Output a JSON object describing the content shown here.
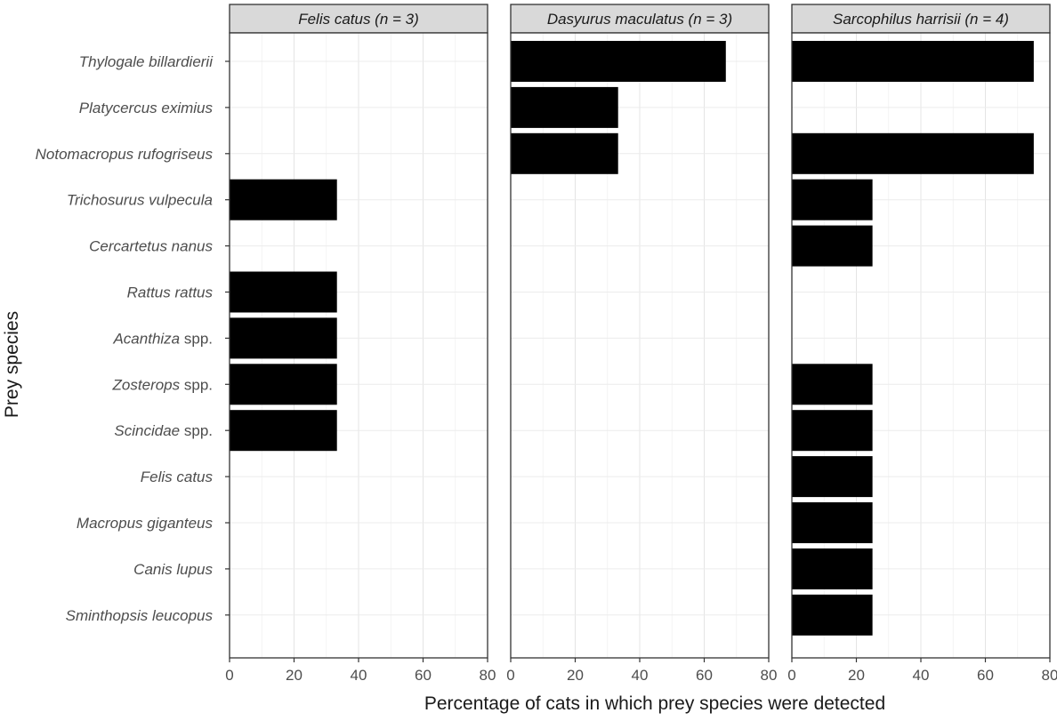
{
  "chart_data": {
    "type": "bar",
    "orientation": "horizontal",
    "faceted": true,
    "xlabel": "Percentage of cats in which prey species were detected",
    "ylabel": "Prey species",
    "xlim": [
      0,
      80
    ],
    "xticks": [
      "0",
      "20",
      "40",
      "60",
      "80"
    ],
    "grid": true,
    "bar_color": "#000000",
    "categories": [
      {
        "name": "Thylogale billardierii",
        "suffix": ""
      },
      {
        "name": "Platycercus eximius",
        "suffix": ""
      },
      {
        "name": "Notomacropus rufogriseus",
        "suffix": ""
      },
      {
        "name": "Trichosurus vulpecula",
        "suffix": ""
      },
      {
        "name": "Cercartetus nanus",
        "suffix": ""
      },
      {
        "name": "Rattus rattus",
        "suffix": ""
      },
      {
        "name": "Acanthiza",
        "suffix": " spp."
      },
      {
        "name": "Zosterops",
        "suffix": " spp."
      },
      {
        "name": "Scincidae",
        "suffix": " spp."
      },
      {
        "name": "Felis catus",
        "suffix": ""
      },
      {
        "name": "Macropus giganteus",
        "suffix": ""
      },
      {
        "name": "Canis lupus",
        "suffix": ""
      },
      {
        "name": "Sminthopsis leucopus",
        "suffix": ""
      }
    ],
    "panels": [
      {
        "title": "Felis catus (n = 3)",
        "values": [
          0,
          0,
          0,
          33.3,
          0,
          33.3,
          33.3,
          33.3,
          33.3,
          0,
          0,
          0,
          0
        ]
      },
      {
        "title": "Dasyurus maculatus (n = 3)",
        "values": [
          66.7,
          33.3,
          33.3,
          0,
          0,
          0,
          0,
          0,
          0,
          0,
          0,
          0,
          0
        ]
      },
      {
        "title": "Sarcophilus harrisii (n = 4)",
        "values": [
          75,
          0,
          75,
          25,
          25,
          0,
          0,
          25,
          25,
          25,
          25,
          25,
          25
        ]
      }
    ]
  }
}
